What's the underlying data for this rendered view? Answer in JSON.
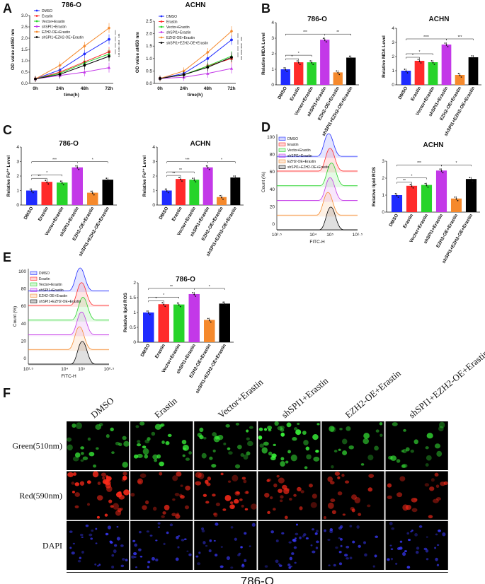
{
  "panel_letters": [
    "A",
    "B",
    "C",
    "D",
    "E",
    "F"
  ],
  "colors": {
    "DMSO": "#1f2bff",
    "Erastin": "#ff2a2a",
    "Vector+Erastin": "#27d42a",
    "shSPI1+Erastin": "#c338e8",
    "EZH2-OE+Erastin": "#f5892c",
    "shSPI1+EZH2-OE+Erastin": "#000000"
  },
  "groups": [
    "DMSO",
    "Erastin",
    "Vector+Erastin",
    "shSPI1+Erastin",
    "EZH2-OE+Erastin",
    "shSPI1+EZH2-OE+Erastin"
  ],
  "chart_data": [
    {
      "id": "A-786-O",
      "type": "line",
      "title": "786-O",
      "xlabel": "time(h)",
      "ylabel": "OD value at450 nm",
      "x": [
        "0h",
        "24h",
        "48h",
        "72h"
      ],
      "ylim": [
        0,
        3.0
      ],
      "yticks": [
        0,
        0.5,
        1.0,
        1.5,
        2.0,
        2.5,
        3.0
      ],
      "series": [
        {
          "name": "DMSO",
          "values": [
            0.2,
            0.6,
            1.3,
            1.95
          ]
        },
        {
          "name": "Erastin",
          "values": [
            0.2,
            0.5,
            0.95,
            1.4
          ]
        },
        {
          "name": "Vector+Erastin",
          "values": [
            0.2,
            0.45,
            0.9,
            1.3
          ]
        },
        {
          "name": "shSPI1+Erastin",
          "values": [
            0.2,
            0.35,
            0.5,
            0.7
          ]
        },
        {
          "name": "EZH2-OE+Erastin",
          "values": [
            0.2,
            0.8,
            1.65,
            2.45
          ]
        },
        {
          "name": "shSPI1+EZH2-OE+Erastin",
          "values": [
            0.2,
            0.4,
            0.8,
            1.2
          ]
        }
      ],
      "sig": [
        "***",
        "****",
        "****",
        "***"
      ]
    },
    {
      "id": "A-ACHN",
      "type": "line",
      "title": "ACHN",
      "xlabel": "time(h)",
      "ylabel": "OD value at450 nm",
      "x": [
        "0h",
        "24h",
        "48h",
        "72h"
      ],
      "ylim": [
        0,
        2.5
      ],
      "yticks": [
        0,
        0.5,
        1.0,
        1.5,
        2.0,
        2.5
      ],
      "series": [
        {
          "name": "DMSO",
          "values": [
            0.2,
            0.4,
            1.0,
            1.75
          ]
        },
        {
          "name": "Erastin",
          "values": [
            0.2,
            0.35,
            0.7,
            1.0
          ]
        },
        {
          "name": "Vector+Erastin",
          "values": [
            0.2,
            0.35,
            0.7,
            1.1
          ]
        },
        {
          "name": "shSPI1+Erastin",
          "values": [
            0.2,
            0.25,
            0.4,
            0.6
          ]
        },
        {
          "name": "EZH2-OE+Erastin",
          "values": [
            0.2,
            0.5,
            1.25,
            2.1
          ]
        },
        {
          "name": "shSPI1+EZH2-OE+Erastin",
          "values": [
            0.2,
            0.35,
            0.65,
            1.05
          ]
        }
      ],
      "sig": [
        "***",
        "****",
        "****",
        "***"
      ]
    },
    {
      "id": "B-786-O",
      "type": "bar",
      "title": "786-O",
      "ylabel": "Relative MDA Level",
      "ylim": [
        0,
        4
      ],
      "yticks": [
        0,
        1,
        2,
        3,
        4
      ],
      "values": [
        1.0,
        1.45,
        1.45,
        2.9,
        0.8,
        1.75
      ],
      "brackets": [
        {
          "a": 0,
          "b": 1,
          "lvl": 0,
          "t": "*"
        },
        {
          "a": 0,
          "b": 2,
          "lvl": 1,
          "t": "*"
        },
        {
          "a": 0,
          "b": 3,
          "lvl": 2,
          "t": "***"
        },
        {
          "a": 3,
          "b": 5,
          "lvl": 2,
          "t": "**"
        }
      ]
    },
    {
      "id": "B-ACHN",
      "type": "bar",
      "title": "ACHN",
      "ylabel": "Relative MDA Level",
      "ylim": [
        0,
        4
      ],
      "yticks": [
        0,
        1,
        2,
        3,
        4
      ],
      "values": [
        1.0,
        1.7,
        1.6,
        2.85,
        0.7,
        1.95
      ],
      "brackets": [
        {
          "a": 0,
          "b": 1,
          "lvl": 0,
          "t": "*"
        },
        {
          "a": 0,
          "b": 2,
          "lvl": 1,
          "t": "*"
        },
        {
          "a": 0,
          "b": 3,
          "lvl": 2,
          "t": "****"
        },
        {
          "a": 3,
          "b": 5,
          "lvl": 2,
          "t": "***"
        }
      ]
    },
    {
      "id": "C-786-O",
      "type": "bar",
      "title": "786-O",
      "ylabel": "Relative Fe²⁺ Level",
      "ylim": [
        0,
        4
      ],
      "yticks": [
        0,
        1,
        2,
        3,
        4
      ],
      "values": [
        1.0,
        1.6,
        1.55,
        2.6,
        0.85,
        1.75
      ],
      "brackets": [
        {
          "a": 0,
          "b": 1,
          "lvl": 0,
          "t": "**"
        },
        {
          "a": 0,
          "b": 2,
          "lvl": 1,
          "t": "*"
        },
        {
          "a": 0,
          "b": 3,
          "lvl": 2,
          "t": "***"
        },
        {
          "a": 3,
          "b": 5,
          "lvl": 2,
          "t": "*"
        }
      ]
    },
    {
      "id": "C-ACHN",
      "type": "bar",
      "title": "ACHN",
      "ylabel": "Relative Fe²⁺ Level",
      "ylim": [
        0,
        4
      ],
      "yticks": [
        0,
        1,
        2,
        3,
        4
      ],
      "values": [
        1.0,
        1.8,
        1.75,
        2.6,
        0.55,
        1.9
      ],
      "brackets": [
        {
          "a": 0,
          "b": 1,
          "lvl": 0,
          "t": "**"
        },
        {
          "a": 0,
          "b": 2,
          "lvl": 1,
          "t": "**"
        },
        {
          "a": 0,
          "b": 3,
          "lvl": 2,
          "t": "***"
        },
        {
          "a": 3,
          "b": 5,
          "lvl": 2,
          "t": "*"
        }
      ]
    },
    {
      "id": "D-ACHN",
      "type": "bar",
      "title": "ACHN",
      "ylabel": "Relative lipid ROS",
      "ylim": [
        0,
        3
      ],
      "yticks": [
        0,
        1,
        2,
        3
      ],
      "values": [
        1.0,
        1.55,
        1.6,
        2.45,
        0.8,
        1.95
      ],
      "brackets": [
        {
          "a": 0,
          "b": 1,
          "lvl": 0,
          "t": "**"
        },
        {
          "a": 0,
          "b": 2,
          "lvl": 1,
          "t": "*"
        },
        {
          "a": 0,
          "b": 3,
          "lvl": 2,
          "t": "***"
        },
        {
          "a": 3,
          "b": 5,
          "lvl": 2,
          "t": "*"
        }
      ]
    },
    {
      "id": "E-786-O",
      "type": "bar",
      "title": "786-O",
      "ylabel": "Relative lipid ROS",
      "ylim": [
        0,
        2.0
      ],
      "yticks": [
        0,
        0.5,
        1.0,
        1.5,
        2.0
      ],
      "values": [
        1.0,
        1.28,
        1.27,
        1.62,
        0.75,
        1.3
      ],
      "brackets": [
        {
          "a": 0,
          "b": 1,
          "lvl": 0,
          "t": "*"
        },
        {
          "a": 0,
          "b": 2,
          "lvl": 1,
          "t": "*"
        },
        {
          "a": 0,
          "b": 3,
          "lvl": 2,
          "t": "**"
        },
        {
          "a": 3,
          "b": 5,
          "lvl": 2,
          "t": "*"
        }
      ]
    },
    {
      "id": "D-flow",
      "type": "area",
      "ylabel": "Count (%)",
      "xlabel": "FITC-H",
      "yticks": [
        "0",
        "20",
        "40",
        "60",
        "80",
        "100"
      ],
      "xticks": [
        "10²·⁵",
        "10⁴",
        "10⁵",
        "10⁶·⁵"
      ]
    },
    {
      "id": "E-flow",
      "type": "area",
      "ylabel": "Count (%)",
      "xlabel": "FITC-H",
      "yticks": [
        "0",
        "20",
        "40",
        "60",
        "80",
        "100"
      ],
      "xticks": [
        "10²·⁵",
        "10⁴",
        "10⁵",
        "10⁶·⁵"
      ]
    }
  ],
  "microscopy": {
    "columns": [
      "DMSO",
      "Erastin",
      "Vector+Erastin",
      "shSPI1+Erastin",
      "EZH2-OE+Erastin",
      "shSPI1+EZH2-OE+Erastin"
    ],
    "rows": [
      {
        "label": "Green(510nm)",
        "color": "#3cff3c",
        "density": [
          0.55,
          0.7,
          0.6,
          1.0,
          0.3,
          0.4
        ]
      },
      {
        "label": "Red(590nm)",
        "color": "#ff2a1a",
        "density": [
          1.0,
          0.5,
          0.8,
          0.55,
          0.4,
          0.35
        ]
      },
      {
        "label": "DAPI",
        "color": "#3a3aff",
        "density": [
          0.9,
          0.75,
          0.7,
          0.8,
          0.65,
          0.85
        ]
      }
    ],
    "footer": "786-O"
  }
}
